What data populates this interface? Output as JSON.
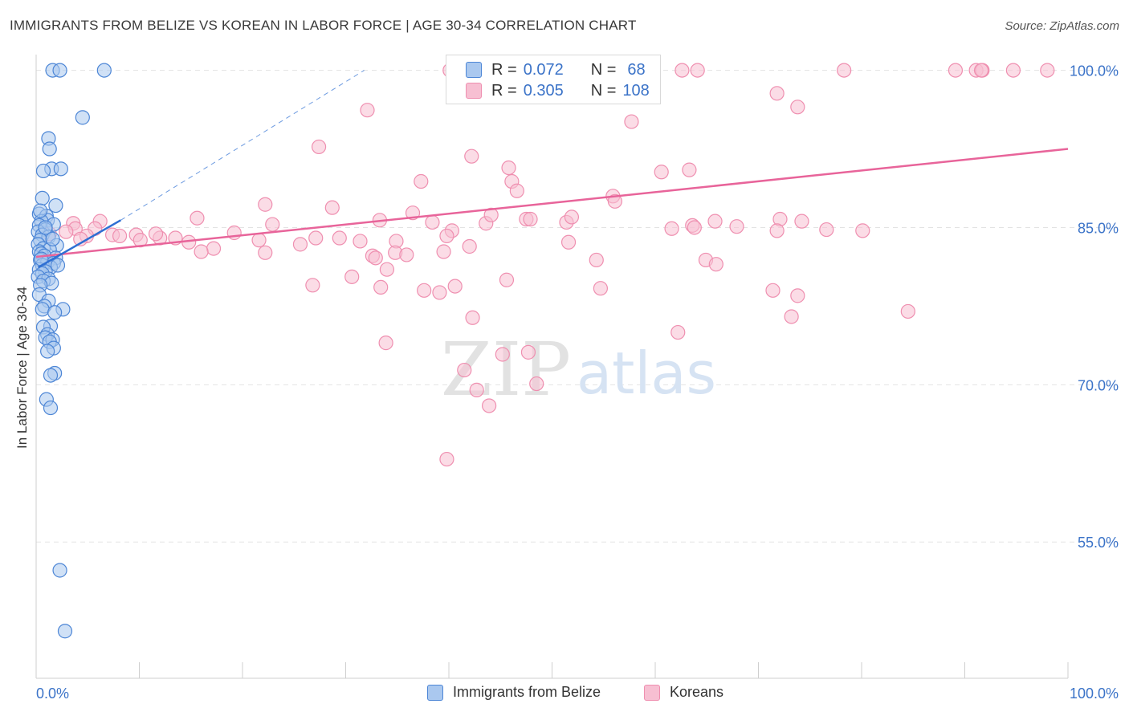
{
  "header": {
    "title": "IMMIGRANTS FROM BELIZE VS KOREAN IN LABOR FORCE | AGE 30-34 CORRELATION CHART",
    "source": "Source: ZipAtlas.com"
  },
  "watermark": {
    "zip": "ZIP",
    "atlas": "atlas"
  },
  "stats": [
    {
      "r_label": "R =",
      "r_value": "0.072",
      "n_label": "N =",
      "n_value": "68"
    },
    {
      "r_label": "R =",
      "r_value": "0.305",
      "n_label": "N =",
      "n_value": "108"
    }
  ],
  "colors": {
    "belize_fill": "#aac8ef",
    "belize_stroke": "#4d86d6",
    "belize_line": "#2e6fd3",
    "korean_fill": "#f7bfd2",
    "korean_stroke": "#ef8fb0",
    "korean_line": "#e8649a",
    "axis_text": "#3b73c8",
    "grid": "#e3e3e3"
  },
  "chart_data": {
    "type": "scatter",
    "ylabel": "In Labor Force | Age 30-34",
    "xlim": [
      0,
      100
    ],
    "ylim": [
      42,
      101.5
    ],
    "x_tick_labels": [
      "0.0%",
      "100.0%"
    ],
    "y_ticks": [
      100,
      85,
      70,
      55
    ],
    "y_tick_labels": [
      "100.0%",
      "85.0%",
      "70.0%",
      "55.0%"
    ],
    "legend_placement": "bottom-center",
    "series": [
      {
        "name": "Immigrants from Belize",
        "points": [
          [
            1.6,
            100
          ],
          [
            2.3,
            100
          ],
          [
            6.6,
            100
          ],
          [
            4.5,
            95.5
          ],
          [
            1.2,
            93.5
          ],
          [
            1.3,
            92.5
          ],
          [
            1.5,
            90.6
          ],
          [
            2.4,
            90.6
          ],
          [
            0.7,
            90.4
          ],
          [
            0.6,
            87.8
          ],
          [
            1.9,
            87.1
          ],
          [
            0.3,
            86.3
          ],
          [
            1.0,
            86.1
          ],
          [
            1.1,
            85.7
          ],
          [
            0.5,
            85.6
          ],
          [
            1.7,
            85.3
          ],
          [
            0.3,
            85.2
          ],
          [
            0.9,
            84.8
          ],
          [
            0.2,
            84.6
          ],
          [
            0.6,
            84.3
          ],
          [
            1.2,
            84.1
          ],
          [
            0.4,
            83.8
          ],
          [
            0.2,
            83.4
          ],
          [
            2.0,
            83.3
          ],
          [
            0.7,
            83.0
          ],
          [
            1.3,
            82.9
          ],
          [
            0.3,
            82.7
          ],
          [
            0.5,
            82.5
          ],
          [
            0.8,
            82.3
          ],
          [
            1.9,
            82.1
          ],
          [
            0.4,
            81.9
          ],
          [
            1.1,
            81.7
          ],
          [
            1.7,
            81.6
          ],
          [
            0.6,
            81.4
          ],
          [
            1.4,
            81.2
          ],
          [
            0.3,
            81.0
          ],
          [
            0.9,
            80.8
          ],
          [
            0.6,
            80.6
          ],
          [
            0.2,
            80.3
          ],
          [
            1.2,
            80.1
          ],
          [
            0.7,
            79.9
          ],
          [
            1.5,
            79.7
          ],
          [
            0.4,
            79.5
          ],
          [
            0.3,
            78.6
          ],
          [
            1.2,
            78.0
          ],
          [
            0.8,
            77.5
          ],
          [
            0.6,
            77.2
          ],
          [
            2.6,
            77.2
          ],
          [
            1.8,
            76.9
          ],
          [
            1.4,
            75.6
          ],
          [
            0.7,
            75.5
          ],
          [
            1.1,
            74.8
          ],
          [
            0.9,
            74.5
          ],
          [
            1.6,
            74.3
          ],
          [
            1.3,
            74.1
          ],
          [
            1.7,
            73.5
          ],
          [
            1.1,
            73.2
          ],
          [
            1.8,
            71.1
          ],
          [
            1.4,
            70.9
          ],
          [
            1.0,
            68.6
          ],
          [
            1.4,
            67.8
          ],
          [
            2.3,
            52.3
          ],
          [
            2.8,
            46.5
          ],
          [
            0.5,
            82.0
          ],
          [
            1.6,
            83.9
          ],
          [
            0.9,
            85.0
          ],
          [
            2.1,
            81.4
          ],
          [
            0.4,
            86.6
          ]
        ],
        "trend": {
          "x": [
            0.2,
            8.2
          ],
          "y": [
            81.2,
            85.7
          ]
        },
        "trend_extension": {
          "x": [
            8.2,
            31.8
          ],
          "y": [
            85.7,
            100.0
          ]
        }
      },
      {
        "name": "Koreans",
        "points": [
          [
            40.1,
            100
          ],
          [
            62.6,
            100
          ],
          [
            64.1,
            100
          ],
          [
            78.3,
            100
          ],
          [
            89.1,
            100
          ],
          [
            91.1,
            100
          ],
          [
            91.7,
            100
          ],
          [
            91.6,
            100
          ],
          [
            94.7,
            100
          ],
          [
            98.0,
            100
          ],
          [
            71.8,
            97.8
          ],
          [
            73.8,
            96.5
          ],
          [
            32.1,
            96.2
          ],
          [
            57.7,
            95.1
          ],
          [
            27.4,
            92.7
          ],
          [
            42.2,
            91.8
          ],
          [
            45.8,
            90.7
          ],
          [
            63.3,
            90.5
          ],
          [
            60.6,
            90.3
          ],
          [
            46.1,
            89.4
          ],
          [
            37.3,
            89.4
          ],
          [
            46.6,
            88.5
          ],
          [
            55.9,
            88.0
          ],
          [
            56.1,
            87.5
          ],
          [
            22.2,
            87.2
          ],
          [
            28.7,
            86.9
          ],
          [
            22.9,
            85.3
          ],
          [
            33.3,
            85.7
          ],
          [
            38.4,
            85.5
          ],
          [
            19.2,
            84.5
          ],
          [
            25.6,
            83.4
          ],
          [
            34.9,
            83.7
          ],
          [
            40.3,
            84.7
          ],
          [
            39.8,
            84.2
          ],
          [
            29.4,
            84.0
          ],
          [
            31.4,
            83.7
          ],
          [
            15.6,
            85.9
          ],
          [
            36.5,
            86.4
          ],
          [
            47.5,
            85.8
          ],
          [
            21.6,
            83.8
          ],
          [
            12.0,
            84.0
          ],
          [
            6.2,
            85.6
          ],
          [
            3.6,
            85.4
          ],
          [
            5.7,
            84.9
          ],
          [
            4.9,
            84.2
          ],
          [
            7.4,
            84.3
          ],
          [
            8.1,
            84.2
          ],
          [
            9.7,
            84.3
          ],
          [
            11.6,
            84.4
          ],
          [
            13.5,
            84.0
          ],
          [
            3.8,
            84.9
          ],
          [
            1.3,
            84.4
          ],
          [
            4.3,
            83.9
          ],
          [
            10.1,
            83.8
          ],
          [
            14.8,
            83.6
          ],
          [
            2.9,
            84.6
          ],
          [
            17.2,
            83.0
          ],
          [
            22.2,
            82.6
          ],
          [
            27.1,
            84.0
          ],
          [
            16.0,
            82.7
          ],
          [
            32.6,
            82.3
          ],
          [
            32.9,
            82.1
          ],
          [
            34.8,
            82.6
          ],
          [
            35.9,
            82.4
          ],
          [
            42.0,
            83.2
          ],
          [
            39.5,
            82.7
          ],
          [
            43.6,
            85.4
          ],
          [
            44.1,
            86.2
          ],
          [
            51.4,
            85.5
          ],
          [
            51.9,
            86.0
          ],
          [
            47.9,
            85.8
          ],
          [
            61.6,
            84.9
          ],
          [
            63.6,
            85.2
          ],
          [
            63.8,
            85.0
          ],
          [
            65.8,
            85.6
          ],
          [
            67.9,
            85.1
          ],
          [
            72.1,
            85.8
          ],
          [
            74.2,
            85.6
          ],
          [
            80.1,
            84.7
          ],
          [
            51.6,
            83.6
          ],
          [
            34.0,
            81.0
          ],
          [
            30.6,
            80.3
          ],
          [
            40.6,
            79.4
          ],
          [
            45.6,
            80.0
          ],
          [
            54.7,
            79.2
          ],
          [
            54.3,
            81.9
          ],
          [
            64.9,
            81.9
          ],
          [
            65.9,
            81.5
          ],
          [
            26.8,
            79.5
          ],
          [
            33.4,
            79.3
          ],
          [
            37.6,
            79.0
          ],
          [
            39.1,
            78.8
          ],
          [
            42.3,
            76.4
          ],
          [
            45.2,
            72.9
          ],
          [
            47.7,
            73.1
          ],
          [
            41.5,
            71.4
          ],
          [
            48.5,
            70.1
          ],
          [
            42.7,
            69.5
          ],
          [
            43.9,
            68.0
          ],
          [
            33.9,
            74.0
          ],
          [
            39.8,
            62.9
          ],
          [
            71.4,
            79.0
          ],
          [
            73.8,
            78.5
          ],
          [
            73.2,
            76.5
          ],
          [
            84.5,
            77.0
          ],
          [
            62.2,
            75.0
          ],
          [
            71.8,
            84.7
          ],
          [
            76.6,
            84.8
          ]
        ],
        "trend": {
          "x": [
            0,
            100
          ],
          "y": [
            82.2,
            92.5
          ]
        }
      }
    ]
  }
}
